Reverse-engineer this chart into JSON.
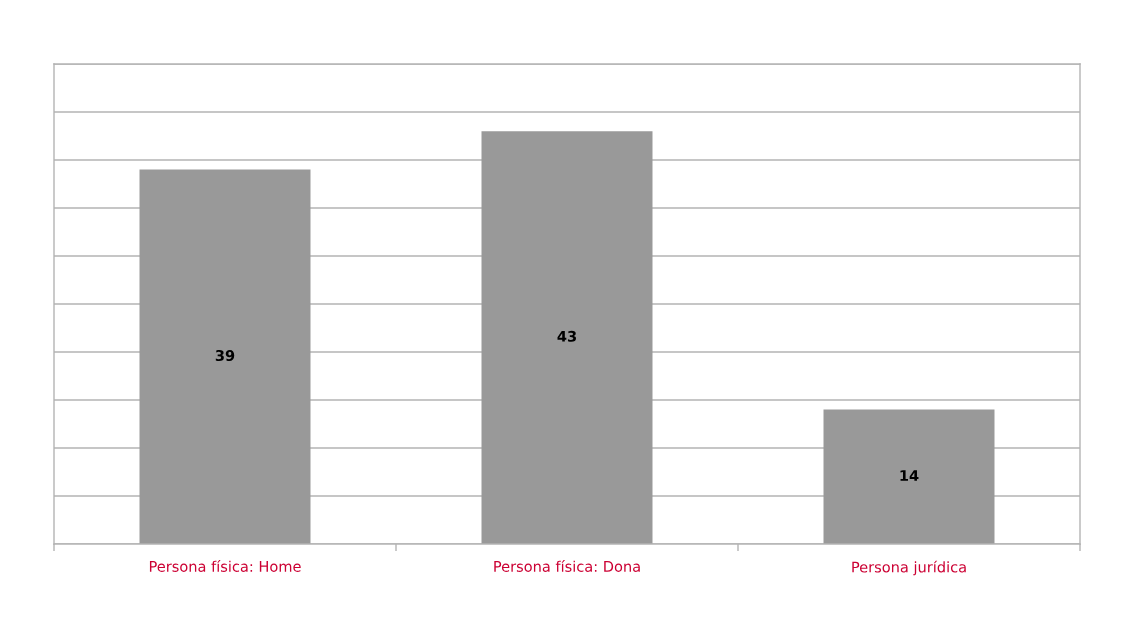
{
  "chart_data": {
    "type": "bar",
    "categories": [
      "Persona física: Home",
      "Persona física: Dona",
      "Persona jurídica"
    ],
    "values": [
      39,
      43,
      14
    ],
    "color": "#999999",
    "ylim": [
      0,
      50
    ],
    "yticks": [
      {
        "value": 0,
        "label": null
      },
      {
        "value": 5,
        "label": null
      },
      {
        "value": 10,
        "label": null
      },
      {
        "value": 15,
        "label": null
      },
      {
        "value": 20,
        "label": null
      },
      {
        "value": 25,
        "label": null
      },
      {
        "value": 30,
        "label": null
      },
      {
        "value": 35,
        "label": null
      },
      {
        "value": 40,
        "label": null
      },
      {
        "value": 45,
        "label": null
      },
      {
        "value": 50,
        "label": null
      }
    ],
    "tick_labels": "x",
    "grid": "y",
    "data_labels": true,
    "legend": false
  }
}
